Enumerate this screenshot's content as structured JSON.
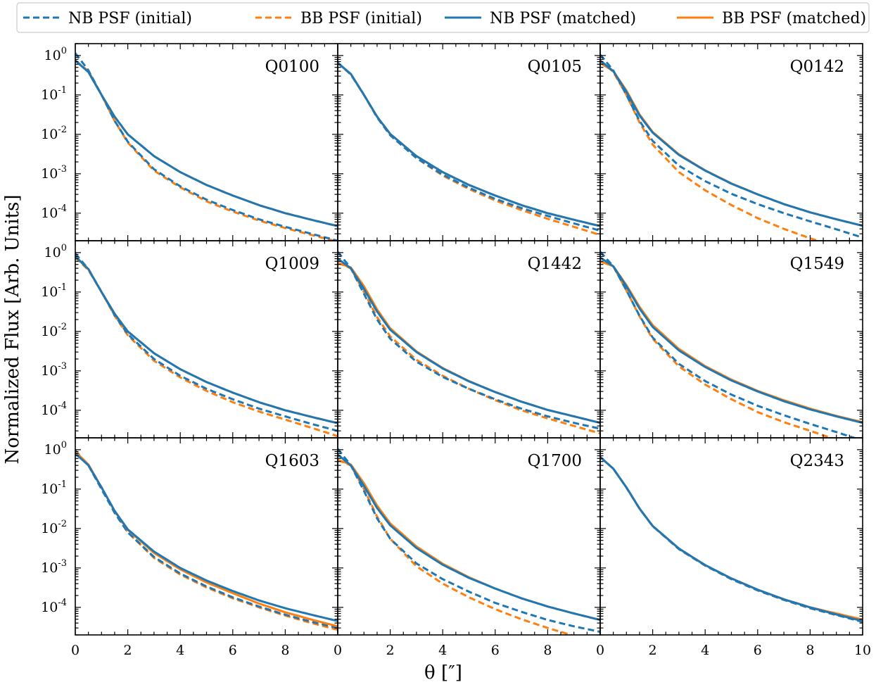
{
  "chart_data": {
    "type": "line",
    "ylabel": "Normalized Flux [Arb. Units]",
    "xlabel": "θ [″]",
    "yscale": "log",
    "xlim": [
      0,
      10
    ],
    "ylim": [
      2e-05,
      2
    ],
    "x_tick_labels": [
      "0",
      "2",
      "4",
      "6",
      "8",
      "0"
    ],
    "x_tick_labels_last_col": [
      "0",
      "2",
      "4",
      "6",
      "8",
      "10"
    ],
    "y_ticks": [
      {
        "base": "10",
        "exp": "0",
        "value": 1
      },
      {
        "base": "10",
        "exp": "-1",
        "value": 0.1
      },
      {
        "base": "10",
        "exp": "-2",
        "value": 0.01
      },
      {
        "base": "10",
        "exp": "-3",
        "value": 0.001
      },
      {
        "base": "10",
        "exp": "-4",
        "value": 0.0001
      }
    ],
    "legend": {
      "placement": "top",
      "entries": [
        {
          "label": "NB PSF (initial)",
          "color": "#1f77b4",
          "style": "dashed"
        },
        {
          "label": "BB PSF (initial)",
          "color": "#ff7f0e",
          "style": "dashed"
        },
        {
          "label": "NB PSF (matched)",
          "color": "#1f77b4",
          "style": "solid"
        },
        {
          "label": "BB PSF (matched)",
          "color": "#ff7f0e",
          "style": "solid"
        }
      ]
    },
    "x": [
      0,
      0.5,
      1,
      1.5,
      2,
      3,
      4,
      5,
      6,
      7,
      8,
      9,
      10
    ],
    "panels": [
      {
        "name": "Q0100",
        "series": {
          "nb_initial": [
            1.15,
            0.42,
            0.1,
            0.022,
            0.0065,
            0.0013,
            0.00048,
            0.00022,
            0.00012,
            7e-05,
            4.5e-05,
            3e-05,
            2e-05
          ],
          "bb_initial": [
            0.75,
            0.4,
            0.1,
            0.022,
            0.0062,
            0.0012,
            0.00045,
            0.0002,
            0.00011,
            6.5e-05,
            4.2e-05,
            2.8e-05,
            1.9e-05
          ],
          "nb_matched": [
            0.75,
            0.38,
            0.1,
            0.028,
            0.01,
            0.0028,
            0.0011,
            0.00052,
            0.00028,
            0.00016,
            0.0001,
            6.8e-05,
            4.7e-05
          ],
          "bb_matched": [
            0.75,
            0.38,
            0.1,
            0.028,
            0.01,
            0.0028,
            0.0011,
            0.00052,
            0.00028,
            0.00016,
            0.0001,
            6.8e-05,
            4.7e-05
          ]
        }
      },
      {
        "name": "Q0105",
        "series": {
          "nb_initial": [
            0.65,
            0.33,
            0.1,
            0.027,
            0.0095,
            0.0025,
            0.00095,
            0.00044,
            0.00023,
            0.000135,
            8.5e-05,
            5.5e-05,
            3.6e-05
          ],
          "bb_initial": [
            0.65,
            0.33,
            0.1,
            0.027,
            0.0095,
            0.0025,
            0.0009,
            0.00041,
            0.00021,
            0.00012,
            7.2e-05,
            4.5e-05,
            2.8e-05
          ],
          "nb_matched": [
            0.65,
            0.34,
            0.1,
            0.028,
            0.0102,
            0.0028,
            0.0011,
            0.00052,
            0.00028,
            0.00016,
            0.0001,
            6.8e-05,
            4.7e-05
          ],
          "bb_matched": [
            0.65,
            0.34,
            0.1,
            0.028,
            0.0102,
            0.0028,
            0.0011,
            0.00052,
            0.00028,
            0.00016,
            0.0001,
            6.8e-05,
            4.7e-05
          ]
        }
      },
      {
        "name": "Q0142",
        "series": {
          "nb_initial": [
            1.05,
            0.42,
            0.1,
            0.022,
            0.0068,
            0.0016,
            0.00065,
            0.00031,
            0.00017,
            0.0001,
            6.2e-05,
            3.9e-05,
            2.4e-05
          ],
          "bb_initial": [
            0.75,
            0.38,
            0.1,
            0.02,
            0.0055,
            0.0011,
            0.00038,
            0.00016,
            7.5e-05,
            4e-05,
            2.3e-05,
            1.4e-05,
            9e-06
          ],
          "nb_matched": [
            0.75,
            0.4,
            0.12,
            0.03,
            0.011,
            0.003,
            0.0012,
            0.00056,
            0.0003,
            0.00017,
            0.000105,
            7e-05,
            4.8e-05
          ],
          "bb_matched": [
            0.65,
            0.4,
            0.13,
            0.032,
            0.0115,
            0.0031,
            0.00122,
            0.00057,
            0.0003,
            0.00017,
            0.000105,
            7e-05,
            4.8e-05
          ]
        }
      },
      {
        "name": "Q1009",
        "series": {
          "nb_initial": [
            0.95,
            0.38,
            0.1,
            0.026,
            0.0085,
            0.002,
            0.00075,
            0.00035,
            0.00019,
            0.00011,
            7e-05,
            4.5e-05,
            3e-05
          ],
          "bb_initial": [
            0.75,
            0.36,
            0.1,
            0.025,
            0.008,
            0.0018,
            0.00068,
            0.00031,
            0.00016,
            9.3e-05,
            5.8e-05,
            3.6e-05,
            2.2e-05
          ],
          "nb_matched": [
            0.8,
            0.38,
            0.1,
            0.028,
            0.01,
            0.0028,
            0.0011,
            0.00052,
            0.00028,
            0.00016,
            0.0001,
            6.8e-05,
            4.7e-05
          ],
          "bb_matched": [
            0.8,
            0.38,
            0.1,
            0.028,
            0.01,
            0.0028,
            0.0011,
            0.00052,
            0.00028,
            0.00016,
            0.0001,
            6.8e-05,
            4.7e-05
          ]
        }
      },
      {
        "name": "Q1442",
        "series": {
          "nb_initial": [
            1.05,
            0.4,
            0.09,
            0.02,
            0.0065,
            0.0017,
            0.0007,
            0.00035,
            0.00019,
            0.00011,
            7e-05,
            4.8e-05,
            3.4e-05
          ],
          "bb_initial": [
            0.55,
            0.4,
            0.1,
            0.023,
            0.0075,
            0.0019,
            0.00075,
            0.00035,
            0.00018,
            0.0001,
            6.2e-05,
            4e-05,
            2.6e-05
          ],
          "nb_matched": [
            0.7,
            0.4,
            0.12,
            0.032,
            0.011,
            0.003,
            0.00115,
            0.00054,
            0.00029,
            0.000165,
            0.000102,
            7e-05,
            4.8e-05
          ],
          "bb_matched": [
            0.55,
            0.42,
            0.14,
            0.036,
            0.012,
            0.0031,
            0.00118,
            0.00055,
            0.00029,
            0.000165,
            0.000102,
            7e-05,
            4.8e-05
          ]
        }
      },
      {
        "name": "Q1549",
        "series": {
          "nb_initial": [
            1.05,
            0.45,
            0.11,
            0.025,
            0.007,
            0.0015,
            0.00055,
            0.00025,
            0.00013,
            7.5e-05,
            4.5e-05,
            2.8e-05,
            1.7e-05
          ],
          "bb_initial": [
            0.75,
            0.45,
            0.11,
            0.024,
            0.0065,
            0.0013,
            0.00045,
            0.00019,
            9e-05,
            5e-05,
            3e-05,
            1.8e-05,
            1.1e-05
          ],
          "nb_matched": [
            0.75,
            0.45,
            0.14,
            0.038,
            0.013,
            0.0033,
            0.00125,
            0.00057,
            0.0003,
            0.00017,
            0.000105,
            7e-05,
            4.8e-05
          ],
          "bb_matched": [
            0.6,
            0.45,
            0.15,
            0.042,
            0.0145,
            0.0036,
            0.00132,
            0.0006,
            0.00031,
            0.00018,
            0.00011,
            7.2e-05,
            5e-05
          ]
        }
      },
      {
        "name": "Q1603",
        "series": {
          "nb_initial": [
            0.95,
            0.4,
            0.1,
            0.025,
            0.008,
            0.0019,
            0.00072,
            0.00034,
            0.00018,
            0.000105,
            6.5e-05,
            4.3e-05,
            3e-05
          ],
          "bb_initial": [
            0.85,
            0.42,
            0.11,
            0.027,
            0.008,
            0.0018,
            0.00068,
            0.00032,
            0.00017,
            0.0001,
            6.2e-05,
            4e-05,
            2.7e-05
          ],
          "nb_matched": [
            0.8,
            0.4,
            0.11,
            0.028,
            0.0095,
            0.0026,
            0.001,
            0.00048,
            0.00026,
            0.00015,
            9.5e-05,
            6.5e-05,
            4.5e-05
          ],
          "bb_matched": [
            0.9,
            0.42,
            0.11,
            0.028,
            0.0093,
            0.0024,
            0.00092,
            0.00043,
            0.00023,
            0.000125,
            7.5e-05,
            4.9e-05,
            3.3e-05
          ]
        }
      },
      {
        "name": "Q1700",
        "series": {
          "nb_initial": [
            1.05,
            0.4,
            0.09,
            0.018,
            0.0055,
            0.0013,
            0.00052,
            0.00025,
            0.00013,
            7.7e-05,
            4.8e-05,
            3.3e-05,
            2.4e-05
          ],
          "bb_initial": [
            0.55,
            0.4,
            0.1,
            0.02,
            0.0055,
            0.0011,
            0.0004,
            0.00018,
            9e-05,
            5e-05,
            3e-05,
            1.9e-05,
            1.2e-05
          ],
          "nb_matched": [
            0.75,
            0.4,
            0.12,
            0.033,
            0.012,
            0.0032,
            0.0012,
            0.00056,
            0.0003,
            0.00017,
            0.000105,
            7e-05,
            4.8e-05
          ],
          "bb_matched": [
            0.55,
            0.42,
            0.14,
            0.038,
            0.0135,
            0.0035,
            0.00128,
            0.00058,
            0.0003,
            0.00017,
            0.000105,
            7e-05,
            4.8e-05
          ]
        }
      },
      {
        "name": "Q2343",
        "series": {
          "nb_initial": [
            0.65,
            0.33,
            0.11,
            0.032,
            0.0115,
            0.003,
            0.00115,
            0.00052,
            0.00027,
            0.000155,
            9.5e-05,
            6.4e-05,
            4.3e-05
          ],
          "bb_initial": [
            0.65,
            0.33,
            0.11,
            0.032,
            0.0115,
            0.003,
            0.00115,
            0.00052,
            0.00027,
            0.000155,
            9.5e-05,
            6.4e-05,
            4.3e-05
          ],
          "nb_matched": [
            0.65,
            0.33,
            0.11,
            0.032,
            0.0116,
            0.0031,
            0.00118,
            0.00054,
            0.00028,
            0.00016,
            0.0001,
            6.6e-05,
            4.5e-05
          ],
          "bb_matched": [
            0.65,
            0.33,
            0.11,
            0.032,
            0.0116,
            0.0031,
            0.00118,
            0.00054,
            0.00028,
            0.00016,
            0.0001,
            7e-05,
            4.9e-05
          ]
        }
      }
    ]
  }
}
